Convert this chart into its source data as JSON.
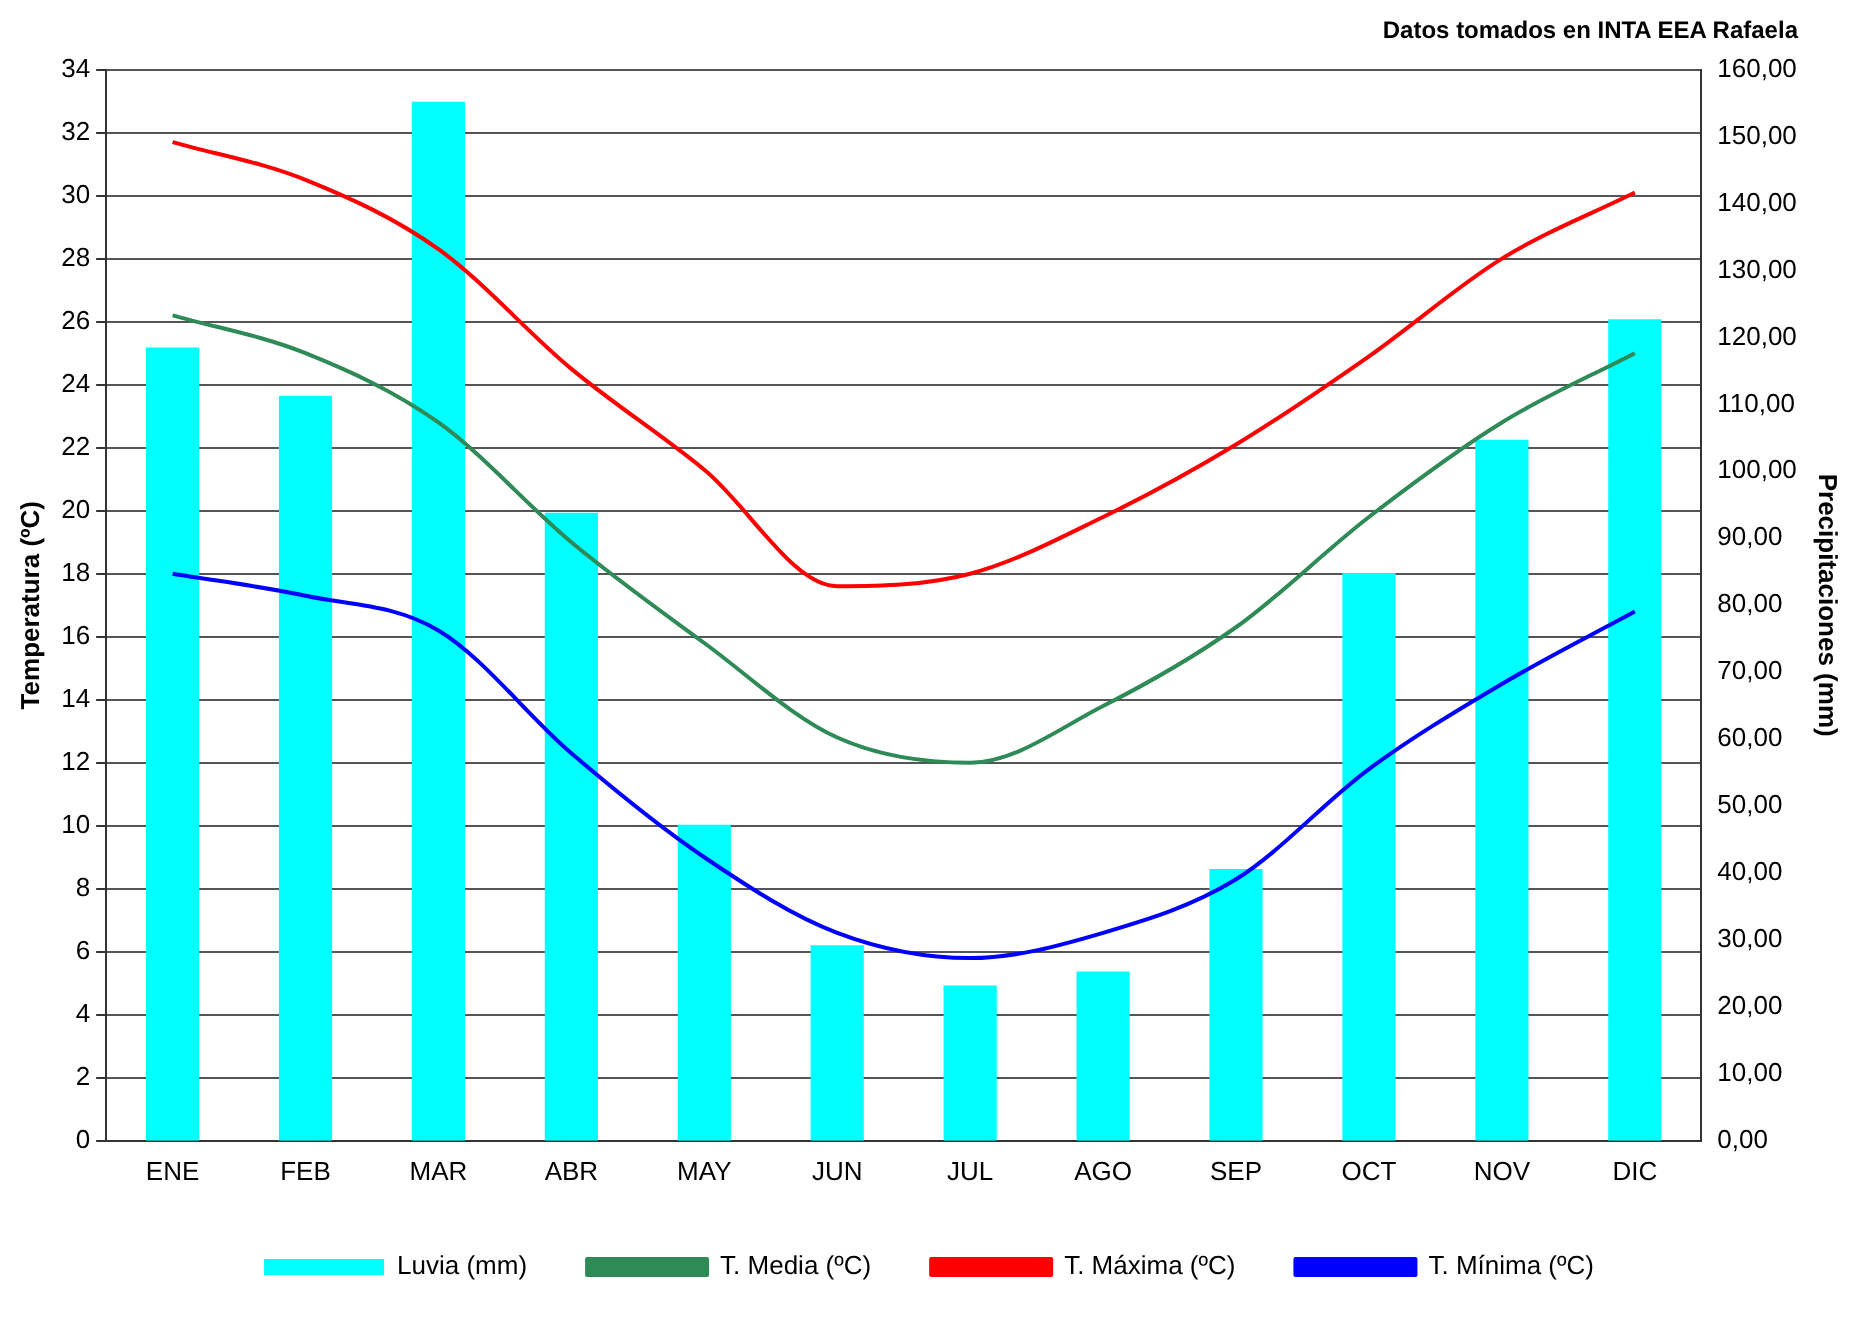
{
  "chart_data": {
    "type": "bar",
    "annotations": [
      "Datos tomados en INTA EEA Rafaela"
    ],
    "ylabel": "Temperatura (ºC)",
    "y2label": "Precipitaciones (mm)",
    "categories": [
      "ENE",
      "FEB",
      "MAR",
      "ABR",
      "MAY",
      "JUN",
      "JUL",
      "AGO",
      "SEP",
      "OCT",
      "NOV",
      "DIC"
    ],
    "series": [
      {
        "name": "Luvia (mm)",
        "axis": "y2",
        "color": "#00ffff",
        "values": [
          118.5,
          111.3,
          155.2,
          93.8,
          47.2,
          29.2,
          23.2,
          25.3,
          40.6,
          84.8,
          104.7,
          122.7
        ]
      },
      {
        "name": "T. Media (ºC)",
        "type": "line",
        "color": "#2e8b57",
        "values": [
          26.2,
          25.0,
          22.8,
          19.0,
          15.8,
          12.8,
          12.0,
          13.8,
          16.3,
          19.8,
          22.8,
          25.0
        ]
      },
      {
        "name": "T. Máxima (ºC)",
        "type": "line",
        "color": "#ff0000",
        "values": [
          31.7,
          30.5,
          28.3,
          24.5,
          21.3,
          17.6,
          18.0,
          19.8,
          22.1,
          24.9,
          28.0,
          30.1
        ]
      },
      {
        "name": "T. Mínima (ºC)",
        "type": "line",
        "color": "#0000ff",
        "values": [
          18.0,
          17.3,
          16.2,
          12.3,
          9.0,
          6.6,
          5.8,
          6.6,
          8.3,
          11.8,
          14.5,
          16.8
        ]
      }
    ],
    "ylim": [
      0,
      34
    ],
    "yticks": [
      0,
      2,
      4,
      6,
      8,
      10,
      12,
      14,
      16,
      18,
      20,
      22,
      24,
      26,
      28,
      30,
      32,
      34
    ],
    "y2lim": [
      0,
      160
    ],
    "y2ticks": [
      {
        "value": 0,
        "label": "0,00"
      },
      {
        "value": 10,
        "label": "10,00"
      },
      {
        "value": 20,
        "label": "20,00"
      },
      {
        "value": 30,
        "label": "30,00"
      },
      {
        "value": 40,
        "label": "40,00"
      },
      {
        "value": 50,
        "label": "50,00"
      },
      {
        "value": 60,
        "label": "60,00"
      },
      {
        "value": 70,
        "label": "70,00"
      },
      {
        "value": 80,
        "label": "80,00"
      },
      {
        "value": 90,
        "label": "90,00"
      },
      {
        "value": 100,
        "label": "100,00"
      },
      {
        "value": 110,
        "label": "110,00"
      },
      {
        "value": 120,
        "label": "120,00"
      },
      {
        "value": 130,
        "label": "130,00"
      },
      {
        "value": 140,
        "label": "140,00"
      },
      {
        "value": 150,
        "label": "150,00"
      },
      {
        "value": 160,
        "label": "160,00"
      }
    ],
    "grid": "y",
    "legend": "bottom",
    "marker": "none",
    "line_style": "solid"
  }
}
